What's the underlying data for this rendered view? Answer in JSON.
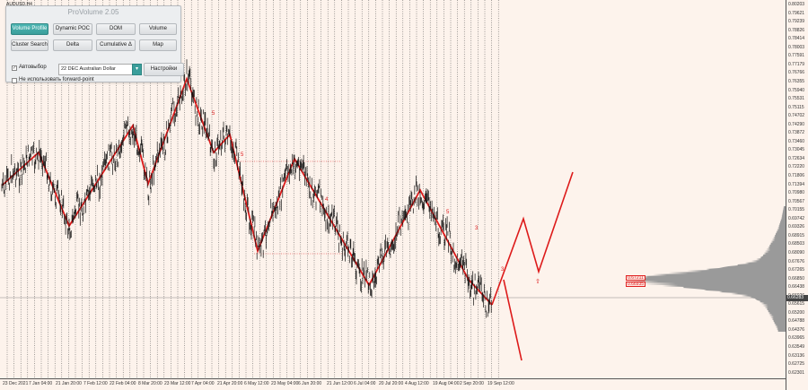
{
  "symbol": "AUDUSD,H4",
  "panel": {
    "title": "ProVolume 2.05",
    "buttons": {
      "volume_profile": "Volume Profile",
      "dynamic_poc": "Dynamic POC",
      "dom": "DOM",
      "volume": "Volume",
      "cluster_search": "Cluster Search",
      "delta": "Delta",
      "cumulative_delta": "Cumulative Δ",
      "map": "Map"
    },
    "auto_label": "Автовыбор",
    "instrument": "22 DEC Australian Dollar",
    "settings_label": "Настройки",
    "forward_label": "Не использовать forward-point"
  },
  "price_axis": [
    "0.80203",
    "0.79621",
    "0.79239",
    "0.78826",
    "0.78414",
    "0.78003",
    "0.77591",
    "0.77179",
    "0.76766",
    "0.76355",
    "0.75940",
    "0.75531",
    "0.75115",
    "0.74702",
    "0.74290",
    "0.73872",
    "0.73460",
    "0.73045",
    "0.72634",
    "0.72220",
    "0.71806",
    "0.71394",
    "0.70980",
    "0.70567",
    "0.70155",
    "0.69742",
    "0.69326",
    "0.68915",
    "0.68503",
    "0.68090",
    "0.67676",
    "0.67265",
    "0.66850",
    "0.66438",
    "0.66026",
    "0.65615",
    "0.65200",
    "0.64788",
    "0.64376",
    "0.63965",
    "0.63549",
    "0.63136",
    "0.62725",
    "0.62301"
  ],
  "current_price": "0.66283",
  "levels": [
    "0.67211",
    "0.66935"
  ],
  "time_axis": [
    "23 Dec 2021",
    "7 Jan 04:00",
    "21 Jan 20:00",
    "7 Feb 12:00",
    "22 Feb 04:00",
    "8 Mar 20:00",
    "23 Mar 12:00",
    "7 Apr 04:00",
    "21 Apr 20:00",
    "6 May 12:00",
    "23 May 04:00",
    "6 Jun 20:00",
    "21 Jun 12:00",
    "6 Jul 04:00",
    "20 Jul 20:00",
    "4 Aug 12:00",
    "19 Aug 04:00",
    "2 Sep 20:00",
    "19 Sep 12:00"
  ],
  "wave_labels": [
    "5",
    "5",
    "4",
    "5",
    "3",
    "3"
  ],
  "colors": {
    "wave": "#dd1a1a",
    "candles": "#111111",
    "grid": "#444444",
    "background": "#fdf3ec",
    "profile": "#9a9a9a",
    "panel_accent": "#3a9e9b"
  }
}
